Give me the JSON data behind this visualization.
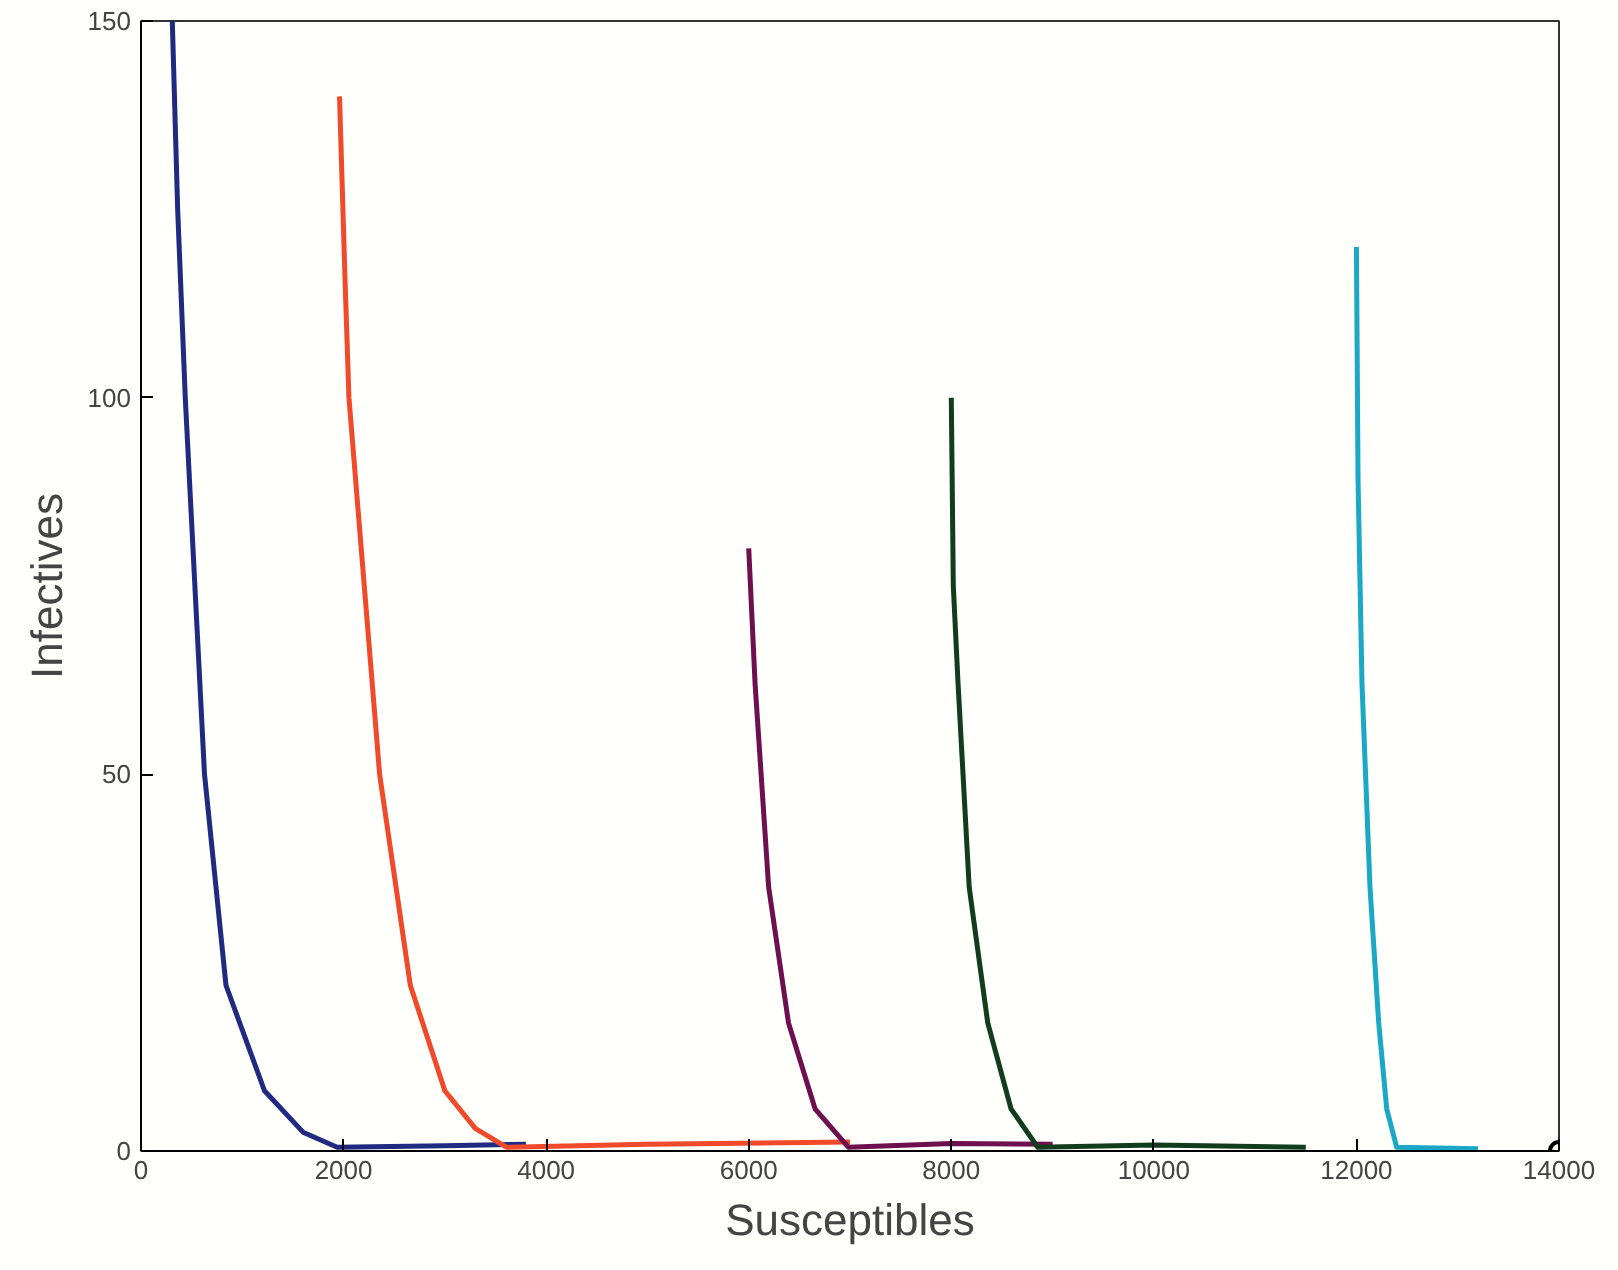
{
  "chart_data": {
    "type": "line",
    "xlabel": "Susceptibles",
    "ylabel": "Infectives",
    "xlim": [
      0,
      14000
    ],
    "ylim": [
      0,
      150
    ],
    "xticks": [
      0,
      2000,
      4000,
      6000,
      8000,
      10000,
      12000,
      14000
    ],
    "yticks": [
      0,
      50,
      100,
      150
    ],
    "grid": false,
    "marker": "none",
    "line_style": "solid",
    "series": [
      {
        "color": "#1f2a80",
        "x": [
          309,
          362,
          437,
          627,
          839,
          1219,
          1600,
          1937,
          3000,
          3800
        ],
        "values": [
          150,
          125,
          100,
          50,
          22,
          8,
          2.5,
          0.5,
          0.7,
          0.9
        ]
      },
      {
        "color": "#f04a2a",
        "x": [
          1960,
          2016,
          2053,
          2356,
          2659,
          3000,
          3300,
          3607,
          5000,
          7000
        ],
        "values": [
          140,
          115,
          100,
          50,
          22,
          8,
          3,
          0.5,
          0.9,
          1.2
        ]
      },
      {
        "color": "#6e1050",
        "x": [
          6000,
          6063,
          6197,
          6393,
          6655,
          6983,
          8000,
          9000
        ],
        "values": [
          80,
          62,
          35,
          17,
          5.6,
          0.5,
          1.0,
          0.9
        ]
      },
      {
        "color": "#123d1c",
        "x": [
          8000,
          8020,
          8067,
          8177,
          8360,
          8590,
          8853,
          10000,
          11500
        ],
        "values": [
          100,
          75,
          62,
          35,
          17,
          5.6,
          0.5,
          0.8,
          0.5
        ]
      },
      {
        "color": "#1aa8c4",
        "x": [
          12000,
          12016,
          12055,
          12134,
          12220,
          12299,
          12397,
          13200
        ],
        "values": [
          120,
          89,
          62,
          35,
          17,
          5.6,
          0.5,
          0.3
        ]
      },
      {
        "type": "scatter",
        "color": "#000000",
        "marker": "circle",
        "x": [
          14000
        ],
        "values": [
          0
        ]
      }
    ]
  }
}
